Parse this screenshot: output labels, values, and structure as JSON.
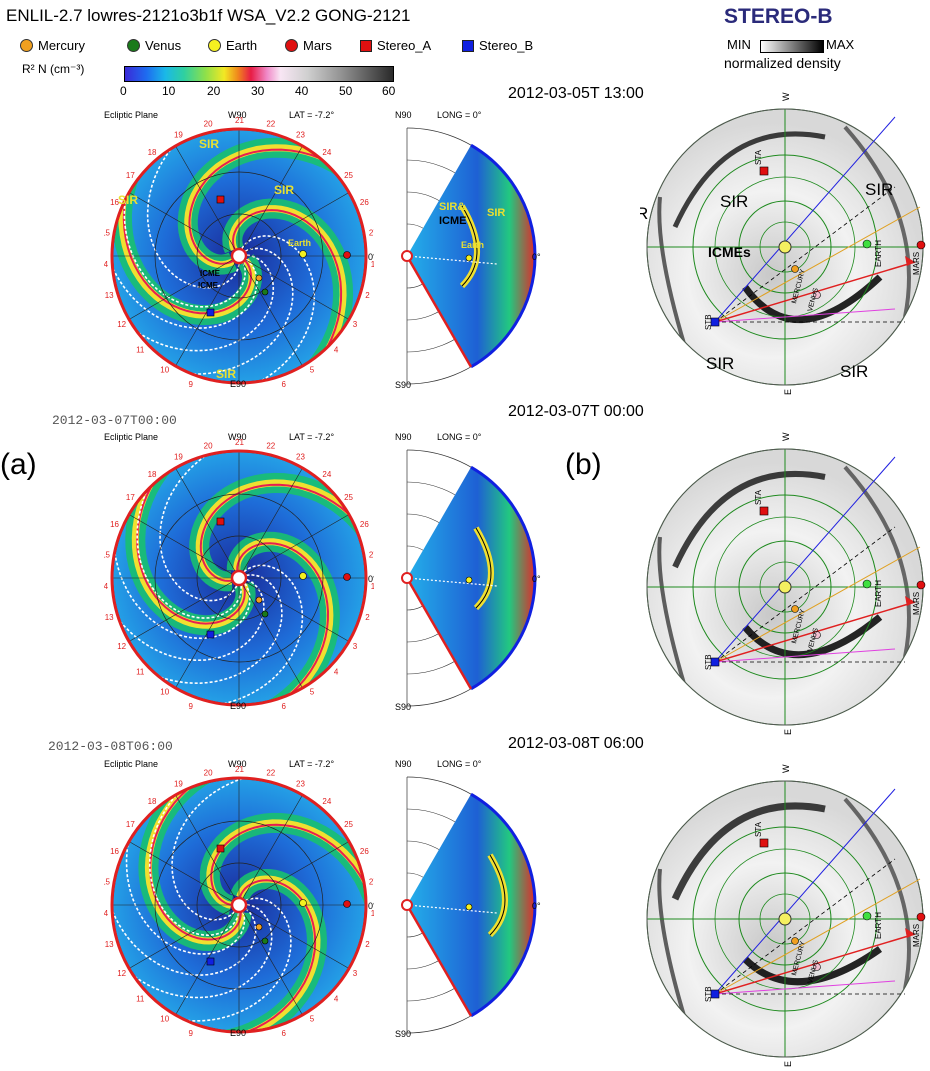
{
  "header": {
    "title": "ENLIL-2.7 lowres-2121o3b1f WSA_V2.2 GONG-2121",
    "legend": [
      {
        "label": "Mercury",
        "shape": "circle",
        "color": "#f0a020"
      },
      {
        "label": "Venus",
        "shape": "circle",
        "color": "#1a7a1a"
      },
      {
        "label": "Earth",
        "shape": "circle",
        "color": "#f5f020"
      },
      {
        "label": "Mars",
        "shape": "circle",
        "color": "#e01010"
      },
      {
        "label": "Stereo_A",
        "shape": "square",
        "color": "#e01010"
      },
      {
        "label": "Stereo_B",
        "shape": "square",
        "color": "#1020e0"
      }
    ],
    "colorbar_label": "R² N (cm⁻³)",
    "colorbar_ticks": [
      "0",
      "10",
      "20",
      "30",
      "40",
      "50",
      "60"
    ]
  },
  "stereo": {
    "title": "STEREO-B",
    "min_label": "MIN",
    "max_label": "MAX",
    "norm_label": "normalized density"
  },
  "panel_labels": {
    "a": "(a)",
    "b": "(b)"
  },
  "ecliptic_static": {
    "plane_label": "Ecliptic Plane",
    "lat_label": "LAT = -7.2°",
    "w90": "W90",
    "e90": "E90",
    "zero": "0°",
    "numbers": [
      "1",
      "2",
      "3",
      "4",
      "5",
      "6",
      "7",
      "8",
      "9",
      "10",
      "11",
      "12",
      "13",
      "14",
      "15",
      "16",
      "17",
      "18",
      "19",
      "20",
      "21",
      "22",
      "23",
      "24",
      "25",
      "26",
      "27"
    ]
  },
  "wedge_static": {
    "n90": "N90",
    "s90": "S90",
    "long_label": "LONG = 0°",
    "zero": "0°"
  },
  "skyplot_static": {
    "w": "W",
    "e": "E",
    "sta": "STA",
    "stb": "STB",
    "earth": "EARTH",
    "mars": "MARS",
    "mercury": "MERCURY",
    "venus": "VENUS"
  },
  "rows": [
    {
      "timestamp_small": "",
      "timestamp": "2012-03-05T 13:00",
      "ecliptic_labels": {
        "sir_top": "SIR",
        "sir_left": "SIR",
        "sir_right": "SIR",
        "sir_bottom": "SIR",
        "icme1": "ICME",
        "icme2": "ICME",
        "earth": "Earth"
      },
      "wedge_labels": {
        "sir": "SIR&",
        "icme": "ICME",
        "sir2": "SIR",
        "earth": "Earth"
      },
      "sky_labels": {
        "sir_left": "SIR",
        "sir_mid": "SIR",
        "sir_right": "SIR",
        "sir_bl": "SIR",
        "sir_br": "SIR",
        "icmes": "ICMEs"
      }
    },
    {
      "timestamp_small": "2012-03-07T00:00",
      "timestamp": "2012-03-07T 00:00",
      "ecliptic_labels": {},
      "wedge_labels": {},
      "sky_labels": {}
    },
    {
      "timestamp_small": "2012-03-08T06:00",
      "timestamp": "2012-03-08T 06:00",
      "ecliptic_labels": {},
      "wedge_labels": {},
      "sky_labels": {}
    }
  ]
}
